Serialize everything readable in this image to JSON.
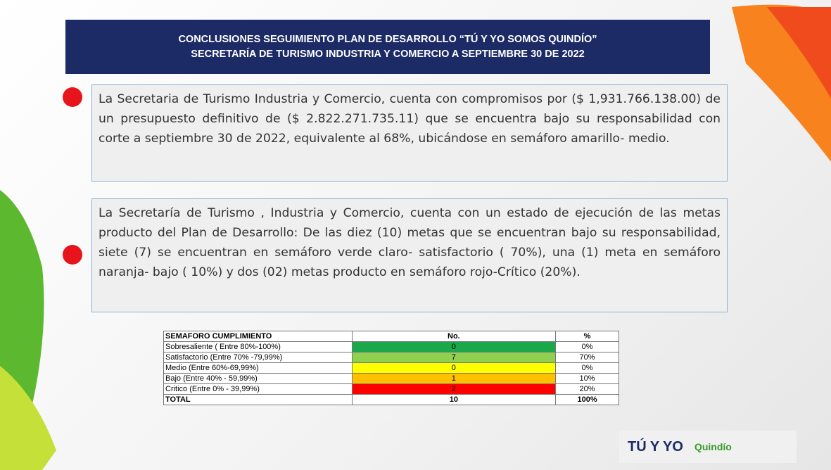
{
  "header": {
    "title_line1": "CONCLUSIONES  SEGUIMIENTO PLAN DE DESARROLLO “TÚ Y YO SOMOS QUINDÍO”",
    "title_line2": "SECRETARÍA DE TURISMO INDUSTRIA Y COMERCIO A SEPTIEMBRE 30 DE 2022"
  },
  "paragraphs": [
    "La Secretaria de Turismo Industria y Comercio, cuenta con compromisos por ($ 1,931.766.138.00) de un presupuesto definitivo de ($ 2.822.271.735.11) que se encuentra bajo su responsabilidad con corte a septiembre 30 de 2022, equivalente al 68%, ubicándose en semáforo amarillo- medio.",
    "La Secretaría de Turismo , Industria y Comercio, cuenta con un estado de ejecución  de las metas producto del Plan de Desarrollo: De las diez  (10) metas  que se encuentran bajo su responsabilidad, siete (7) se encuentran en semáforo verde claro- satisfactorio ( 70%), una (1) meta en semáforo naranja- bajo ( 10%) y dos (02) metas producto en semáforo rojo-Crítico  (20%)."
  ],
  "table": {
    "header": [
      "SEMAFORO CUMPLIMIENTO",
      "No.",
      "%"
    ],
    "rows": [
      [
        "Sobresaliente  ( Entre 80%-100%)",
        "0",
        "0%"
      ],
      [
        "Satisfactorio (Entre 70% -79,99%)",
        "7",
        "70%"
      ],
      [
        "Medio (Entre 60%-69,99%)",
        "0",
        "0%"
      ],
      [
        "Bajo (Entre 40% - 59,99%)",
        "1",
        "10%"
      ],
      [
        "Critico (Entre 0% - 39,99%)",
        "2",
        "20%"
      ]
    ],
    "total": [
      "TOTAL",
      "10",
      "100%"
    ]
  },
  "logos": {
    "main": "TÚ Y YO",
    "region": "Quindío"
  }
}
